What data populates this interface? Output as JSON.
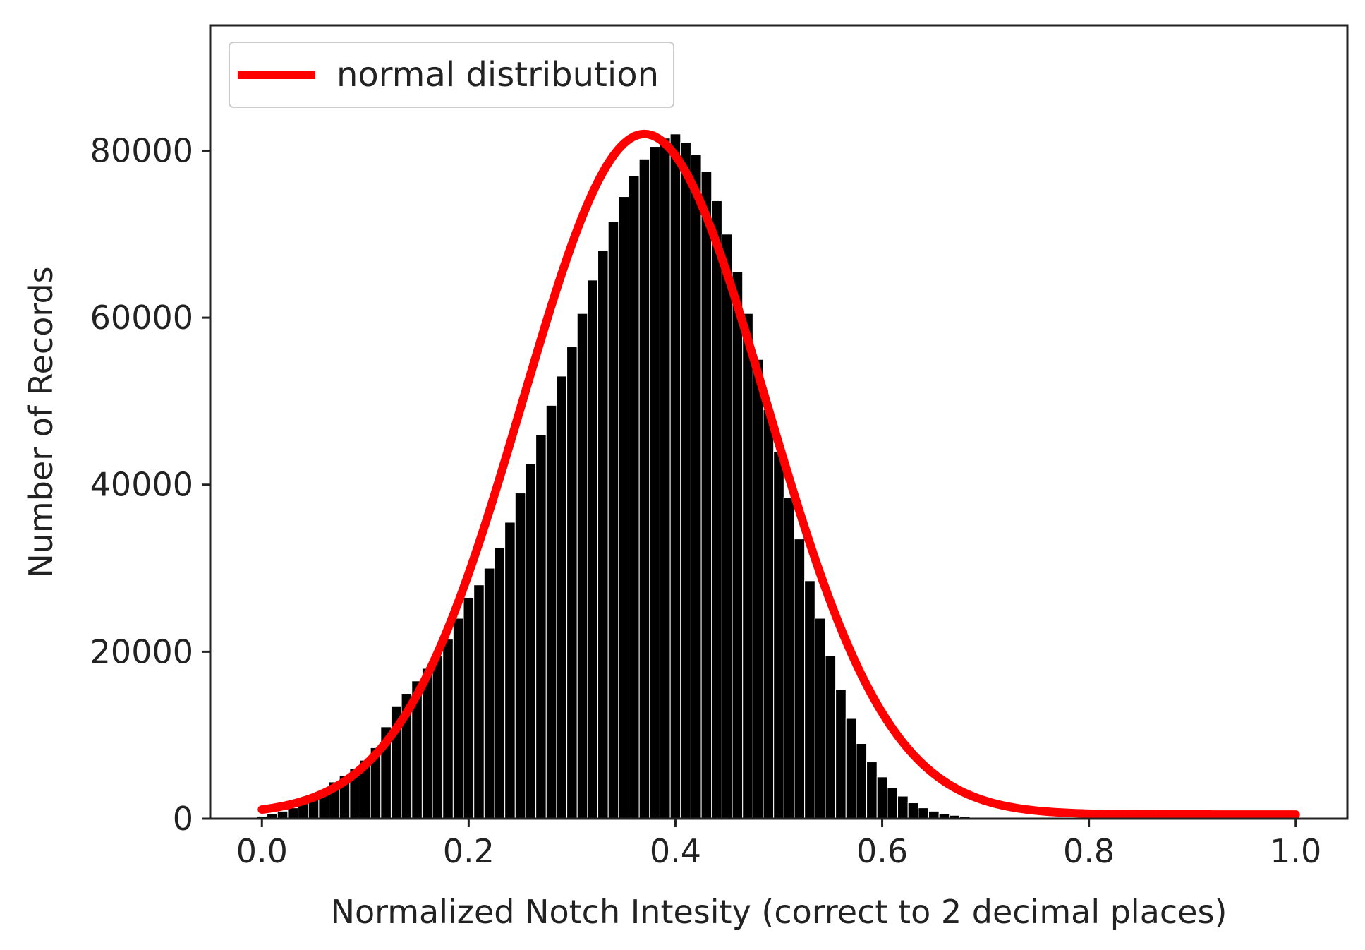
{
  "chart_data": {
    "type": "bar",
    "xlabel": "Normalized Notch Intesity (correct to 2 decimal places)",
    "ylabel": "Number of Records",
    "xlim": [
      -0.05,
      1.05
    ],
    "ylim": [
      0,
      95000
    ],
    "x_ticks": [
      "0.0",
      "0.2",
      "0.4",
      "0.6",
      "0.8",
      "1.0"
    ],
    "y_ticks": [
      "0",
      "20000",
      "40000",
      "60000",
      "80000"
    ],
    "grid": false,
    "legend": {
      "position": "top-left",
      "entries": [
        "normal distribution"
      ]
    },
    "bin_width": 0.01,
    "histogram": {
      "x": [
        0.0,
        0.01,
        0.02,
        0.03,
        0.04,
        0.05,
        0.06,
        0.07,
        0.08,
        0.09,
        0.1,
        0.11,
        0.12,
        0.13,
        0.14,
        0.15,
        0.16,
        0.17,
        0.18,
        0.19,
        0.2,
        0.21,
        0.22,
        0.23,
        0.24,
        0.25,
        0.26,
        0.27,
        0.28,
        0.29,
        0.3,
        0.31,
        0.32,
        0.33,
        0.34,
        0.35,
        0.36,
        0.37,
        0.38,
        0.39,
        0.4,
        0.41,
        0.42,
        0.43,
        0.44,
        0.45,
        0.46,
        0.47,
        0.48,
        0.49,
        0.5,
        0.51,
        0.52,
        0.53,
        0.54,
        0.55,
        0.56,
        0.57,
        0.58,
        0.59,
        0.6,
        0.61,
        0.62,
        0.63,
        0.64,
        0.65,
        0.66,
        0.67,
        0.68,
        0.69,
        0.7,
        0.71,
        0.72,
        0.73,
        0.74,
        0.75
      ],
      "values": [
        300,
        600,
        900,
        1300,
        1800,
        2500,
        3400,
        4400,
        5200,
        6000,
        7000,
        8500,
        11000,
        13500,
        15000,
        16500,
        18000,
        19500,
        21500,
        24000,
        26500,
        28000,
        30000,
        32500,
        35500,
        39000,
        42500,
        46000,
        49500,
        53000,
        56500,
        60500,
        64500,
        68000,
        71500,
        74500,
        77000,
        79000,
        80500,
        81500,
        82000,
        81000,
        79500,
        77500,
        74000,
        70000,
        65500,
        60500,
        55000,
        49000,
        44000,
        38500,
        33500,
        28500,
        24000,
        19500,
        15500,
        12000,
        9000,
        6800,
        5000,
        3700,
        2700,
        1900,
        1300,
        900,
        600,
        400,
        260,
        160,
        100,
        60,
        40,
        20,
        10,
        5
      ],
      "color": "#000000"
    },
    "series": [
      {
        "name": "normal distribution",
        "type": "line",
        "mean": 0.37,
        "std": 0.118,
        "peak": 81500,
        "x_range": [
          0.0,
          1.0
        ],
        "color": "#ff0000"
      }
    ]
  }
}
